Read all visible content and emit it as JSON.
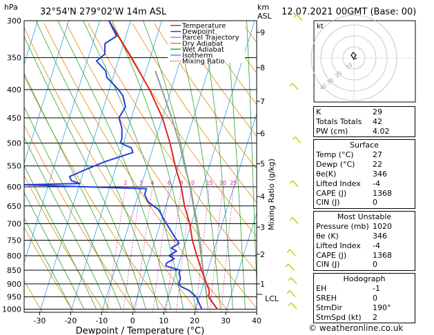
{
  "header": {
    "hpa_label": "hPa",
    "location": "32°54'N  279°02'W  14m  ASL",
    "km_label": "km",
    "asl_label": "ASL",
    "datetime": "12.07.2021  00GMT  (Base: 00)"
  },
  "axis_labels": {
    "x": "Dewpoint / Temperature (°C)",
    "mixing": "Mixing Ratio (g/kg)"
  },
  "legend": {
    "items": [
      {
        "label": "Temperature",
        "color": "#e02020",
        "style": "solid"
      },
      {
        "label": "Dewpoint",
        "color": "#1e3ee0",
        "style": "solid"
      },
      {
        "label": "Parcel Trajectory",
        "color": "#999999",
        "style": "solid"
      },
      {
        "label": "Dry Adiabat",
        "color": "#e08a00",
        "style": "solid"
      },
      {
        "label": "Wet Adiabat",
        "color": "#2aa02a",
        "style": "solid"
      },
      {
        "label": "Isotherm",
        "color": "#30a0e0",
        "style": "solid"
      },
      {
        "label": "Mixing Ratio",
        "color": "#d020a0",
        "style": "dotted"
      }
    ]
  },
  "hodograph": {
    "label": "kt",
    "ring_labels": [
      "10",
      "20",
      "30",
      "40"
    ]
  },
  "indices": {
    "top": [
      {
        "label": "K",
        "value": "29"
      },
      {
        "label": "Totals Totals",
        "value": "42"
      },
      {
        "label": "PW (cm)",
        "value": "4.02"
      }
    ],
    "surface": {
      "title": "Surface",
      "rows": [
        {
          "label": "Temp (°C)",
          "value": "27"
        },
        {
          "label": "Dewp (°C)",
          "value": "22"
        },
        {
          "label": "θe(K)",
          "value": "346"
        },
        {
          "label": "Lifted Index",
          "value": "-4"
        },
        {
          "label": "CAPE (J)",
          "value": "1368"
        },
        {
          "label": "CIN (J)",
          "value": "0"
        }
      ]
    },
    "most_unstable": {
      "title": "Most Unstable",
      "rows": [
        {
          "label": "Pressure (mb)",
          "value": "1020"
        },
        {
          "label": "θe (K)",
          "value": "346"
        },
        {
          "label": "Lifted Index",
          "value": "-4"
        },
        {
          "label": "CAPE (J)",
          "value": "1368"
        },
        {
          "label": "CIN (J)",
          "value": "0"
        }
      ]
    },
    "hodograph_box": {
      "title": "Hodograph",
      "rows": [
        {
          "label": "EH",
          "value": "-1"
        },
        {
          "label": "SREH",
          "value": "0"
        },
        {
          "label": "StmDir",
          "value": "190°"
        },
        {
          "label": "StmSpd (kt)",
          "value": "2"
        }
      ]
    }
  },
  "copyright": "© weatheronline.co.uk",
  "chart_data": {
    "type": "skew-t",
    "xlim": [
      -35,
      40
    ],
    "x_ticks": [
      -30,
      -20,
      -10,
      0,
      10,
      20,
      30,
      40
    ],
    "p_ticks": [
      300,
      350,
      400,
      450,
      500,
      550,
      600,
      650,
      700,
      750,
      800,
      850,
      900,
      950,
      1000
    ],
    "km_ticks": [
      {
        "km": 1,
        "p": 900
      },
      {
        "km": 2,
        "p": 795
      },
      {
        "km": 3,
        "p": 710
      },
      {
        "km": 4,
        "p": 625
      },
      {
        "km": 5,
        "p": 545
      },
      {
        "km": 6,
        "p": 480
      },
      {
        "km": 7,
        "p": 420
      },
      {
        "km": 8,
        "p": 365
      },
      {
        "km": 9,
        "p": 315
      }
    ],
    "lcl_label": "LCL",
    "lcl_p": 940,
    "mixing_labels": [
      "2",
      "3",
      "4",
      "6",
      "8",
      "10",
      "15",
      "20",
      "25"
    ],
    "mixing_ratios": [
      2,
      3,
      4,
      6,
      8,
      10,
      15,
      20,
      25
    ],
    "temperature": {
      "name": "Temperature",
      "p": [
        1000,
        975,
        950,
        925,
        900,
        850,
        800,
        750,
        700,
        650,
        600,
        550,
        500,
        450,
        400,
        350,
        300
      ],
      "t": [
        27,
        25,
        23,
        22.5,
        21,
        18,
        15,
        12,
        9.5,
        6,
        3,
        -1,
        -5,
        -10,
        -17,
        -26,
        -37
      ]
    },
    "dewpoint": {
      "name": "Dewpoint",
      "p": [
        1000,
        975,
        950,
        925,
        910,
        900,
        880,
        860,
        850,
        835,
        825,
        810,
        800,
        785,
        775,
        760,
        740,
        720,
        700,
        680,
        660,
        640,
        620,
        605,
        600,
        595,
        592,
        585,
        575,
        560,
        540,
        530,
        520,
        510,
        500,
        490,
        470,
        450,
        430,
        410,
        400,
        380,
        370,
        355,
        345,
        330,
        320,
        310,
        300
      ],
      "t": [
        22,
        20.5,
        19,
        16,
        13,
        12,
        12,
        11,
        11,
        6,
        6,
        8,
        6,
        8,
        6,
        8,
        6,
        4,
        2,
        0,
        -2,
        -6,
        -8,
        -8,
        -29,
        -48,
        -30,
        -33,
        -34,
        -30,
        -24,
        -20,
        -16,
        -17,
        -21,
        -21,
        -22,
        -24,
        -23,
        -25,
        -27,
        -32,
        -33,
        -37,
        -35,
        -36,
        -33,
        -35,
        -37
      ]
    },
    "parcel": {
      "name": "Parcel Trajectory",
      "p": [
        1000,
        940,
        900,
        850,
        800,
        750,
        700,
        650,
        600,
        550,
        500,
        450,
        400,
        370
      ],
      "t": [
        27,
        22,
        20.5,
        18.5,
        16.5,
        14.5,
        12,
        9,
        6,
        2,
        -2,
        -7,
        -13,
        -17
      ]
    }
  }
}
